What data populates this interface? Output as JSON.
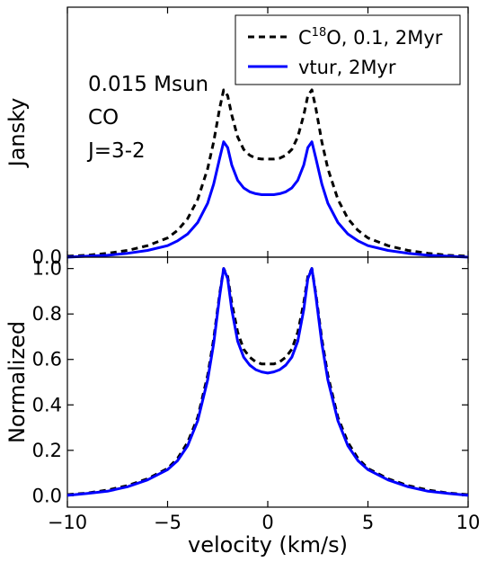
{
  "chart_data": [
    {
      "type": "line",
      "panel": "top",
      "ylabel": "Jansky",
      "xlim": [
        -10,
        10
      ],
      "ylim": [
        0,
        2.6
      ],
      "yticks": [
        0.0
      ],
      "ytick_labels": [
        "0.0"
      ],
      "annotations": [
        "0.015 Msun",
        "CO",
        "J=3-2"
      ],
      "legend_placement": "top-right",
      "legend": [
        {
          "base": "C",
          "sup": "18",
          "rest": "O, 0.1, 2Myr",
          "style": "dashed",
          "color": "#000000"
        },
        {
          "text": "vtur, 2Myr",
          "style": "solid",
          "color": "#0000ff"
        }
      ],
      "series": [
        {
          "name": "C18O, 0.1, 2Myr",
          "color": "#000000",
          "style": "dashed",
          "x": [
            -10,
            -9,
            -8,
            -7,
            -6,
            -5,
            -4.5,
            -4,
            -3.5,
            -3,
            -2.7,
            -2.4,
            -2.2,
            -2.0,
            -1.8,
            -1.5,
            -1.2,
            -0.9,
            -0.6,
            -0.3,
            0,
            0.3,
            0.6,
            0.9,
            1.2,
            1.5,
            1.8,
            2.0,
            2.2,
            2.4,
            2.7,
            3,
            3.5,
            4,
            4.5,
            5,
            6,
            7,
            8,
            9,
            10
          ],
          "y": [
            0.01,
            0.02,
            0.04,
            0.07,
            0.12,
            0.2,
            0.28,
            0.4,
            0.6,
            0.92,
            1.2,
            1.55,
            1.74,
            1.68,
            1.48,
            1.25,
            1.12,
            1.06,
            1.03,
            1.02,
            1.02,
            1.02,
            1.03,
            1.06,
            1.12,
            1.25,
            1.48,
            1.68,
            1.74,
            1.55,
            1.2,
            0.92,
            0.6,
            0.4,
            0.28,
            0.2,
            0.12,
            0.07,
            0.04,
            0.02,
            0.01
          ]
        },
        {
          "name": "vtur, 2Myr",
          "color": "#0000ff",
          "style": "solid",
          "x": [
            -10,
            -9,
            -8,
            -7,
            -6,
            -5,
            -4.5,
            -4,
            -3.5,
            -3,
            -2.7,
            -2.4,
            -2.2,
            -2.0,
            -1.8,
            -1.5,
            -1.2,
            -0.9,
            -0.6,
            -0.3,
            0,
            0.3,
            0.6,
            0.9,
            1.2,
            1.5,
            1.8,
            2.0,
            2.2,
            2.4,
            2.7,
            3,
            3.5,
            4,
            4.5,
            5,
            6,
            7,
            8,
            9,
            10
          ],
          "y": [
            0.0,
            0.01,
            0.02,
            0.04,
            0.07,
            0.12,
            0.17,
            0.24,
            0.36,
            0.56,
            0.76,
            1.03,
            1.2,
            1.14,
            0.96,
            0.8,
            0.72,
            0.68,
            0.66,
            0.65,
            0.65,
            0.65,
            0.66,
            0.68,
            0.72,
            0.8,
            0.96,
            1.14,
            1.2,
            1.03,
            0.76,
            0.56,
            0.36,
            0.24,
            0.17,
            0.12,
            0.07,
            0.04,
            0.02,
            0.01,
            0.0
          ]
        }
      ]
    },
    {
      "type": "line",
      "panel": "bottom",
      "xlabel": "velocity (km/s)",
      "ylabel": "Normalized",
      "xlim": [
        -10,
        10
      ],
      "ylim": [
        -0.05,
        1.05
      ],
      "xticks": [
        -10,
        -5,
        0,
        5,
        10
      ],
      "xtick_labels": [
        "−10",
        "−5",
        "0",
        "5",
        "10"
      ],
      "yticks": [
        0.0,
        0.2,
        0.4,
        0.6,
        0.8,
        1.0
      ],
      "ytick_labels": [
        "0.0",
        "0.2",
        "0.4",
        "0.6",
        "0.8",
        "1.0"
      ],
      "series": [
        {
          "name": "C18O, 0.1, 2Myr",
          "color": "#000000",
          "style": "dashed",
          "x": [
            -10,
            -9,
            -8,
            -7,
            -6,
            -5,
            -4.5,
            -4,
            -3.5,
            -3,
            -2.7,
            -2.4,
            -2.2,
            -2.0,
            -1.8,
            -1.5,
            -1.2,
            -0.9,
            -0.6,
            -0.3,
            0,
            0.3,
            0.6,
            0.9,
            1.2,
            1.5,
            1.8,
            2.0,
            2.2,
            2.4,
            2.7,
            3,
            3.5,
            4,
            4.5,
            5,
            6,
            7,
            8,
            9,
            10
          ],
          "y": [
            0.005,
            0.012,
            0.025,
            0.045,
            0.075,
            0.12,
            0.165,
            0.235,
            0.345,
            0.53,
            0.69,
            0.89,
            1.0,
            0.965,
            0.85,
            0.72,
            0.645,
            0.61,
            0.59,
            0.58,
            0.58,
            0.58,
            0.59,
            0.61,
            0.645,
            0.72,
            0.85,
            0.965,
            1.0,
            0.89,
            0.69,
            0.53,
            0.345,
            0.235,
            0.165,
            0.12,
            0.075,
            0.045,
            0.025,
            0.012,
            0.005
          ]
        },
        {
          "name": "vtur, 2Myr",
          "color": "#0000ff",
          "style": "solid",
          "x": [
            -10,
            -9,
            -8,
            -7,
            -6,
            -5,
            -4.5,
            -4,
            -3.5,
            -3,
            -2.7,
            -2.4,
            -2.2,
            -2.0,
            -1.8,
            -1.5,
            -1.2,
            -0.9,
            -0.6,
            -0.3,
            0,
            0.3,
            0.6,
            0.9,
            1.2,
            1.5,
            1.8,
            2.0,
            2.2,
            2.4,
            2.7,
            3,
            3.5,
            4,
            4.5,
            5,
            6,
            7,
            8,
            9,
            10
          ],
          "y": [
            0.002,
            0.01,
            0.02,
            0.04,
            0.07,
            0.115,
            0.155,
            0.22,
            0.33,
            0.51,
            0.67,
            0.88,
            1.0,
            0.955,
            0.82,
            0.68,
            0.61,
            0.575,
            0.555,
            0.545,
            0.54,
            0.545,
            0.555,
            0.575,
            0.61,
            0.68,
            0.82,
            0.955,
            1.0,
            0.88,
            0.67,
            0.51,
            0.33,
            0.22,
            0.155,
            0.115,
            0.07,
            0.04,
            0.02,
            0.01,
            0.002
          ]
        }
      ]
    }
  ]
}
